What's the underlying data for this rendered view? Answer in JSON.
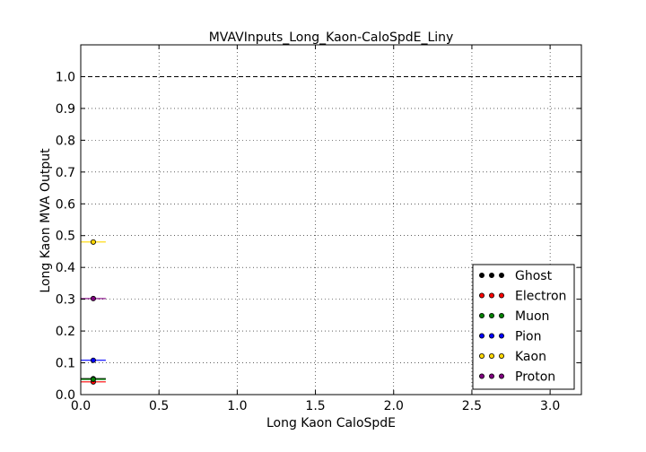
{
  "chart_data": {
    "type": "scatter",
    "title": "MVAVInputs_Long_Kaon-CaloSpdE_Liny",
    "xlabel": "Long Kaon CaloSpdE",
    "ylabel": "Long Kaon MVA Output",
    "xlim": [
      0.0,
      3.2
    ],
    "ylim": [
      0.0,
      1.1
    ],
    "xticks": [
      0.0,
      0.5,
      1.0,
      1.5,
      2.0,
      2.5,
      3.0
    ],
    "xtick_labels": [
      "0.0",
      "0.5",
      "1.0",
      "1.5",
      "2.0",
      "2.5",
      "3.0"
    ],
    "yticks": [
      0.0,
      0.1,
      0.2,
      0.3,
      0.4,
      0.5,
      0.6,
      0.7,
      0.8,
      0.9,
      1.0
    ],
    "ytick_labels": [
      "0.0",
      "0.1",
      "0.2",
      "0.3",
      "0.4",
      "0.5",
      "0.6",
      "0.7",
      "0.8",
      "0.9",
      "1.0"
    ],
    "grid": true,
    "reference_line": {
      "y": 1.0,
      "style": "dashed"
    },
    "legend_position": "bottom-right",
    "series": [
      {
        "name": "Ghost",
        "color": "#000000",
        "points": [
          {
            "x": 0.08,
            "y": 0.05,
            "xerr": 0.08
          }
        ]
      },
      {
        "name": "Electron",
        "color": "#ff0000",
        "points": [
          {
            "x": 0.08,
            "y": 0.04,
            "xerr": 0.08
          }
        ]
      },
      {
        "name": "Muon",
        "color": "#008000",
        "points": [
          {
            "x": 0.08,
            "y": 0.048,
            "xerr": 0.08
          }
        ]
      },
      {
        "name": "Pion",
        "color": "#0000ff",
        "points": [
          {
            "x": 0.08,
            "y": 0.108,
            "xerr": 0.08
          }
        ]
      },
      {
        "name": "Kaon",
        "color": "#ffd700",
        "points": [
          {
            "x": 0.08,
            "y": 0.48,
            "xerr": 0.08
          }
        ]
      },
      {
        "name": "Proton",
        "color": "#800080",
        "points": [
          {
            "x": 0.08,
            "y": 0.302,
            "xerr": 0.08
          }
        ]
      }
    ]
  }
}
